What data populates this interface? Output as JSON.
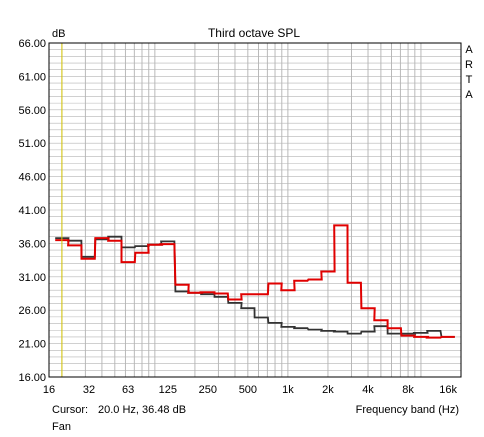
{
  "chart_data": {
    "type": "line",
    "title": "Third octave SPL",
    "ylabel": "dB",
    "xlabel": "Frequency band (Hz)",
    "ylim": [
      16,
      66
    ],
    "y_ticks": [
      "16.00",
      "21.00",
      "26.00",
      "31.00",
      "36.00",
      "41.00",
      "46.00",
      "51.00",
      "56.00",
      "61.00",
      "66.00"
    ],
    "x_scale": "log",
    "xlim": [
      16,
      20000
    ],
    "x_ticks": [
      {
        "label": "16",
        "value": 16
      },
      {
        "label": "32",
        "value": 32
      },
      {
        "label": "63",
        "value": 63
      },
      {
        "label": "125",
        "value": 125
      },
      {
        "label": "250",
        "value": 250
      },
      {
        "label": "500",
        "value": 500
      },
      {
        "label": "1k",
        "value": 1000
      },
      {
        "label": "2k",
        "value": 2000
      },
      {
        "label": "4k",
        "value": 4000
      },
      {
        "label": "8k",
        "value": 8000
      },
      {
        "label": "16k",
        "value": 16000
      }
    ],
    "grid": true,
    "bands": [
      20,
      25,
      31.5,
      40,
      50,
      63,
      80,
      100,
      125,
      160,
      200,
      250,
      315,
      400,
      500,
      630,
      800,
      1000,
      1250,
      1600,
      2000,
      2500,
      3150,
      4000,
      5000,
      6300,
      8000,
      10000,
      12500,
      16000
    ],
    "series": [
      {
        "color": "#333333",
        "values": [
          36.8,
          36.4,
          34.0,
          36.6,
          37.0,
          35.4,
          35.6,
          35.8,
          36.3,
          28.8,
          28.6,
          28.4,
          28.0,
          27.1,
          26.3,
          24.9,
          24.1,
          23.5,
          23.3,
          23.1,
          22.9,
          22.8,
          22.5,
          22.8,
          23.6,
          22.5,
          22.5,
          22.6,
          22.9,
          22.0
        ]
      },
      {
        "color": "#e00000",
        "values": [
          36.5,
          35.7,
          33.7,
          36.8,
          36.4,
          33.2,
          34.6,
          35.8,
          35.9,
          29.8,
          28.6,
          28.7,
          28.5,
          27.6,
          28.4,
          28.4,
          30.0,
          29.0,
          30.4,
          30.6,
          31.8,
          38.7,
          30.1,
          26.3,
          24.5,
          23.3,
          22.2,
          22.0,
          21.9,
          22.0
        ]
      }
    ],
    "cursor": {
      "label": "Cursor:",
      "readout": "20.0 Hz, 36.48 dB",
      "value": 20,
      "color": "#d4c400"
    },
    "brand": "A R T A",
    "note": "Fan"
  }
}
